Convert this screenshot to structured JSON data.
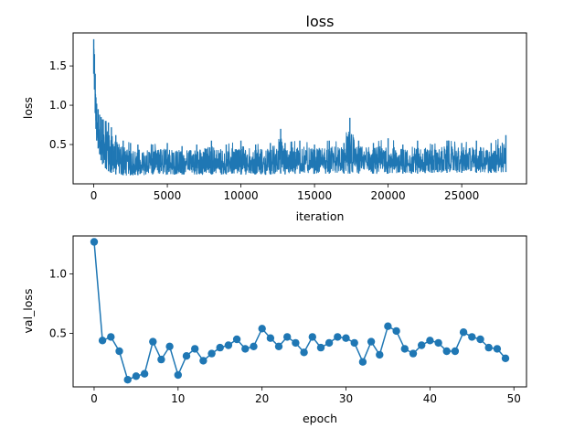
{
  "chart_data": [
    {
      "type": "line",
      "title": "loss",
      "xlabel": "iteration",
      "ylabel": "loss",
      "xlim": [
        -1400,
        29400
      ],
      "ylim": [
        0.0,
        1.92
      ],
      "xticks": [
        0,
        5000,
        10000,
        15000,
        20000,
        25000
      ],
      "yticks": [
        0.5,
        1.0,
        1.5
      ],
      "grid": false,
      "color": "#1f77b4",
      "series": [
        {
          "x": [
            0,
            50,
            100,
            150,
            200,
            300,
            400,
            500,
            600,
            800,
            1000,
            1200,
            1500,
            2000,
            2500,
            3000,
            4000,
            5000,
            6000,
            7000,
            8000,
            9000,
            10000,
            11000,
            12000,
            12700,
            13000,
            14000,
            15000,
            16000,
            17000,
            17400,
            18000,
            19000,
            20000,
            21000,
            22000,
            23000,
            24000,
            25000,
            26000,
            27000,
            28000
          ],
          "y_upper": [
            1.84,
            1.65,
            1.4,
            1.1,
            1.02,
            0.95,
            0.88,
            0.85,
            0.82,
            0.8,
            0.78,
            0.72,
            0.62,
            0.55,
            0.52,
            0.5,
            0.5,
            0.52,
            0.48,
            0.5,
            0.55,
            0.5,
            0.55,
            0.5,
            0.52,
            0.7,
            0.52,
            0.55,
            0.5,
            0.55,
            0.52,
            0.84,
            0.55,
            0.52,
            0.58,
            0.5,
            0.55,
            0.5,
            0.55,
            0.52,
            0.55,
            0.52,
            0.62
          ],
          "y_lower": [
            1.4,
            1.2,
            0.9,
            0.7,
            0.55,
            0.45,
            0.38,
            0.3,
            0.25,
            0.2,
            0.16,
            0.14,
            0.12,
            0.11,
            0.11,
            0.11,
            0.12,
            0.12,
            0.12,
            0.12,
            0.12,
            0.12,
            0.12,
            0.12,
            0.12,
            0.13,
            0.12,
            0.13,
            0.13,
            0.13,
            0.13,
            0.13,
            0.13,
            0.13,
            0.13,
            0.13,
            0.13,
            0.14,
            0.14,
            0.14,
            0.14,
            0.14,
            0.15
          ]
        }
      ]
    },
    {
      "type": "line",
      "title": "",
      "xlabel": "epoch",
      "ylabel": "val_loss",
      "xlim": [
        -2.5,
        51.5
      ],
      "ylim": [
        0.05,
        1.32
      ],
      "xticks": [
        0,
        10,
        20,
        30,
        40,
        50
      ],
      "yticks": [
        0.5,
        1.0
      ],
      "grid": false,
      "markers": "circle",
      "color": "#1f77b4",
      "series": [
        {
          "x": [
            0,
            1,
            2,
            3,
            4,
            5,
            6,
            7,
            8,
            9,
            10,
            11,
            12,
            13,
            14,
            15,
            16,
            17,
            18,
            19,
            20,
            21,
            22,
            23,
            24,
            25,
            26,
            27,
            28,
            29,
            30,
            31,
            32,
            33,
            34,
            35,
            36,
            37,
            38,
            39,
            40,
            41,
            42,
            43,
            44,
            45,
            46,
            47,
            48,
            49
          ],
          "y": [
            1.27,
            0.44,
            0.47,
            0.35,
            0.11,
            0.14,
            0.16,
            0.43,
            0.28,
            0.39,
            0.15,
            0.31,
            0.37,
            0.27,
            0.33,
            0.38,
            0.4,
            0.45,
            0.37,
            0.39,
            0.54,
            0.46,
            0.39,
            0.47,
            0.42,
            0.34,
            0.47,
            0.38,
            0.42,
            0.47,
            0.46,
            0.42,
            0.26,
            0.43,
            0.32,
            0.56,
            0.52,
            0.37,
            0.33,
            0.4,
            0.44,
            0.42,
            0.35,
            0.35,
            0.51,
            0.47,
            0.45,
            0.38,
            0.37,
            0.29
          ]
        }
      ]
    }
  ]
}
